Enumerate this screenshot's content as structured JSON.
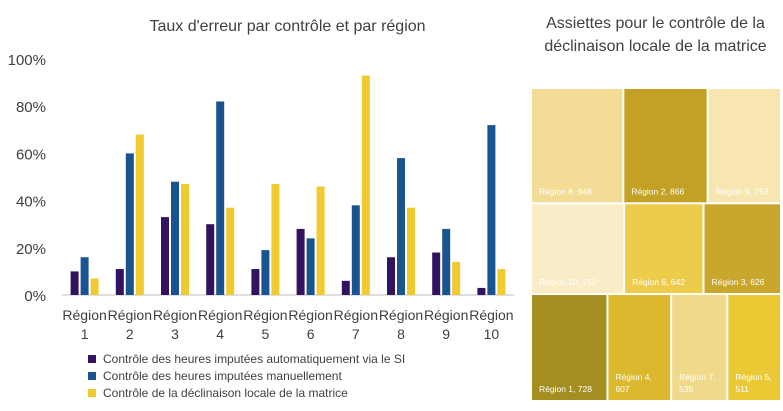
{
  "chart_data": [
    {
      "type": "bar",
      "title": "Taux d'erreur par contrôle et par région",
      "categories": [
        [
          "Région",
          "1"
        ],
        [
          "Région",
          "2"
        ],
        [
          "Région",
          "3"
        ],
        [
          "Région",
          "4"
        ],
        [
          "Région",
          "5"
        ],
        [
          "Région",
          "6"
        ],
        [
          "Région",
          "7"
        ],
        [
          "Région",
          "8"
        ],
        [
          "Région",
          "9"
        ],
        [
          "Région",
          "10"
        ]
      ],
      "yticks": [
        "0%",
        "20%",
        "40%",
        "60%",
        "80%",
        "100%"
      ],
      "ylim": [
        0,
        100
      ],
      "legend_position": "bottom",
      "series": [
        {
          "name": "Contrôle des heures imputées automatiquement via le SI",
          "color": "#33135f",
          "values": [
            10,
            11,
            33,
            30,
            11,
            28,
            6,
            16,
            18,
            3
          ]
        },
        {
          "name": "Contrôle des heures imputées manuellement",
          "color": "#1a5490",
          "values": [
            16,
            60,
            48,
            82,
            19,
            24,
            38,
            58,
            28,
            72
          ]
        },
        {
          "name": "Contrôle de la déclinaison locale de la matrice",
          "color": "#f0ca2e",
          "values": [
            7,
            68,
            47,
            37,
            47,
            46,
            93,
            37,
            14,
            11
          ]
        }
      ]
    },
    {
      "type": "treemap",
      "title": "Assiettes pour le contrôle de la déclinaison locale de la matrice",
      "items": [
        {
          "label": "Région 8,  948",
          "value": 948,
          "color": "#f3dc95",
          "text_color": "#ffffff"
        },
        {
          "label": "Région 2,  866",
          "value": 866,
          "color": "#c3a124",
          "text_color": "#ffffff"
        },
        {
          "label": "Région 9,  753",
          "value": 753,
          "color": "#f7e6b0",
          "text_color": "#ffffff"
        },
        {
          "label": "Région 10,  752",
          "value": 752,
          "color": "#f9ecc6",
          "text_color": "#ffffff"
        },
        {
          "label": "Région 6,  642",
          "value": 642,
          "color": "#eccc4a",
          "text_color": "#ffffff"
        },
        {
          "label": "Région 3,  626",
          "value": 626,
          "color": "#c9a72c",
          "text_color": "#ffffff"
        },
        {
          "label": "Région 1,  728",
          "value": 728,
          "color": "#a58e20",
          "text_color": "#ffffff"
        },
        {
          "label": "Région 4,  607",
          "value": 607,
          "color": "#dbb82e",
          "text_color": "#ffffff"
        },
        {
          "label": "Région 7,  535",
          "value": 535,
          "color": "#f0d98a",
          "text_color": "#ffffff"
        },
        {
          "label": "Région 5,  511",
          "value": 511,
          "color": "#ebc934",
          "text_color": "#ffffff"
        }
      ]
    }
  ]
}
